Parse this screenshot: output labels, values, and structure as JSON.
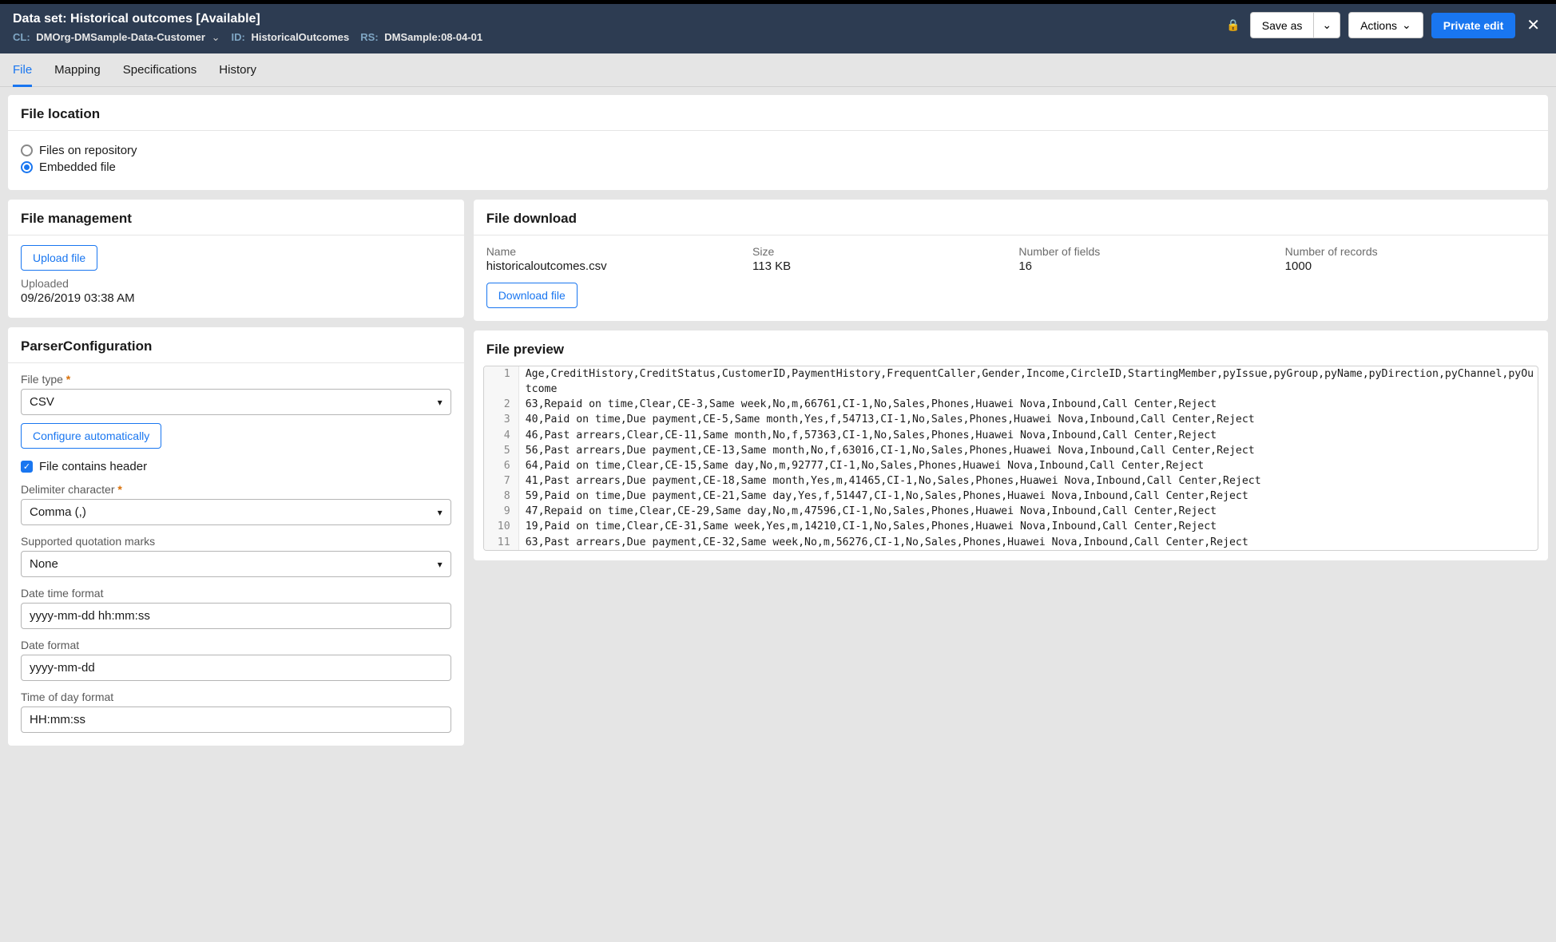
{
  "header": {
    "title_prefix": "Data set:",
    "title_name": "Historical outcomes",
    "title_status": "[Available]",
    "meta": {
      "cl_label": "CL:",
      "cl_value": "DMOrg-DMSample-Data-Customer",
      "id_label": "ID:",
      "id_value": "HistoricalOutcomes",
      "rs_label": "RS:",
      "rs_value": "DMSample:08-04-01"
    },
    "buttons": {
      "save_as": "Save as",
      "actions": "Actions",
      "private_edit": "Private edit"
    }
  },
  "tabs": [
    "File",
    "Mapping",
    "Specifications",
    "History"
  ],
  "file_location": {
    "title": "File location",
    "opt_repo": "Files on repository",
    "opt_embedded": "Embedded file"
  },
  "file_management": {
    "title": "File management",
    "upload_btn": "Upload file",
    "uploaded_label": "Uploaded",
    "uploaded_value": "09/26/2019 03:38 AM"
  },
  "file_download": {
    "title": "File download",
    "name_label": "Name",
    "name_value": "historicaloutcomes.csv",
    "size_label": "Size",
    "size_value": "113 KB",
    "fields_label": "Number of fields",
    "fields_value": "16",
    "records_label": "Number of records",
    "records_value": "1000",
    "download_btn": "Download file"
  },
  "parser": {
    "title": "ParserConfiguration",
    "file_type_label": "File type",
    "file_type_value": "CSV",
    "configure_btn": "Configure automatically",
    "header_checkbox": "File contains header",
    "delimiter_label": "Delimiter character",
    "delimiter_value": "Comma (,)",
    "quotation_label": "Supported quotation marks",
    "quotation_value": "None",
    "datetime_label": "Date time format",
    "datetime_value": "yyyy-mm-dd hh:mm:ss",
    "date_label": "Date format",
    "date_value": "yyyy-mm-dd",
    "time_label": "Time of day format",
    "time_value": "HH:mm:ss"
  },
  "preview": {
    "title": "File preview",
    "lines": [
      "Age,CreditHistory,CreditStatus,CustomerID,PaymentHistory,FrequentCaller,Gender,Income,CircleID,StartingMember,pyIssue,pyGroup,pyName,pyDirection,pyChannel,pyOutcome",
      "63,Repaid on time,Clear,CE-3,Same week,No,m,66761,CI-1,No,Sales,Phones,Huawei Nova,Inbound,Call Center,Reject",
      "40,Paid on time,Due payment,CE-5,Same month,Yes,f,54713,CI-1,No,Sales,Phones,Huawei Nova,Inbound,Call Center,Reject",
      "46,Past arrears,Clear,CE-11,Same month,No,f,57363,CI-1,No,Sales,Phones,Huawei Nova,Inbound,Call Center,Reject",
      "56,Past arrears,Due payment,CE-13,Same month,No,f,63016,CI-1,No,Sales,Phones,Huawei Nova,Inbound,Call Center,Reject",
      "64,Paid on time,Clear,CE-15,Same day,No,m,92777,CI-1,No,Sales,Phones,Huawei Nova,Inbound,Call Center,Reject",
      "41,Past arrears,Due payment,CE-18,Same month,Yes,m,41465,CI-1,No,Sales,Phones,Huawei Nova,Inbound,Call Center,Reject",
      "59,Paid on time,Due payment,CE-21,Same day,Yes,f,51447,CI-1,No,Sales,Phones,Huawei Nova,Inbound,Call Center,Reject",
      "47,Repaid on time,Clear,CE-29,Same day,No,m,47596,CI-1,No,Sales,Phones,Huawei Nova,Inbound,Call Center,Reject",
      "19,Paid on time,Clear,CE-31,Same week,Yes,m,14210,CI-1,No,Sales,Phones,Huawei Nova,Inbound,Call Center,Reject",
      "63,Past arrears,Due payment,CE-32,Same week,No,m,56276,CI-1,No,Sales,Phones,Huawei Nova,Inbound,Call Center,Reject"
    ]
  }
}
